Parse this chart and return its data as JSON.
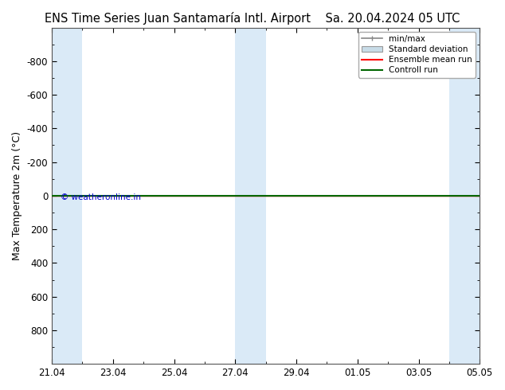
{
  "title": "ENS Time Series Juan Santamaría Intl. Airport",
  "title2": "Sa. 20.04.2024 05 UTC",
  "ylabel": "Max Temperature 2m (°C)",
  "ylim": [
    1000,
    -1000
  ],
  "yticks": [
    -800,
    -600,
    -400,
    -200,
    0,
    200,
    400,
    600,
    800
  ],
  "x_start": 0,
  "x_end": 14,
  "xtick_labels": [
    "21.04",
    "23.04",
    "25.04",
    "27.04",
    "29.04",
    "01.05",
    "03.05",
    "05.05"
  ],
  "xtick_positions": [
    0,
    2,
    4,
    6,
    8,
    10,
    12,
    14
  ],
  "shaded_ranges": [
    [
      0,
      1
    ],
    [
      6,
      7
    ],
    [
      13,
      14
    ]
  ],
  "shaded_color": "#daeaf7",
  "bg_color": "#ffffff",
  "plot_bg_color": "#ffffff",
  "green_line_color": "#006600",
  "red_line_color": "#ff0000",
  "copyright_text": "© weatheronline.in",
  "copyright_color": "#0000cc",
  "legend_minmax_facecolor": "#d8d8d8",
  "legend_std_facecolor": "#c8dce8",
  "title_fontsize": 10.5,
  "axis_fontsize": 9,
  "tick_fontsize": 8.5
}
